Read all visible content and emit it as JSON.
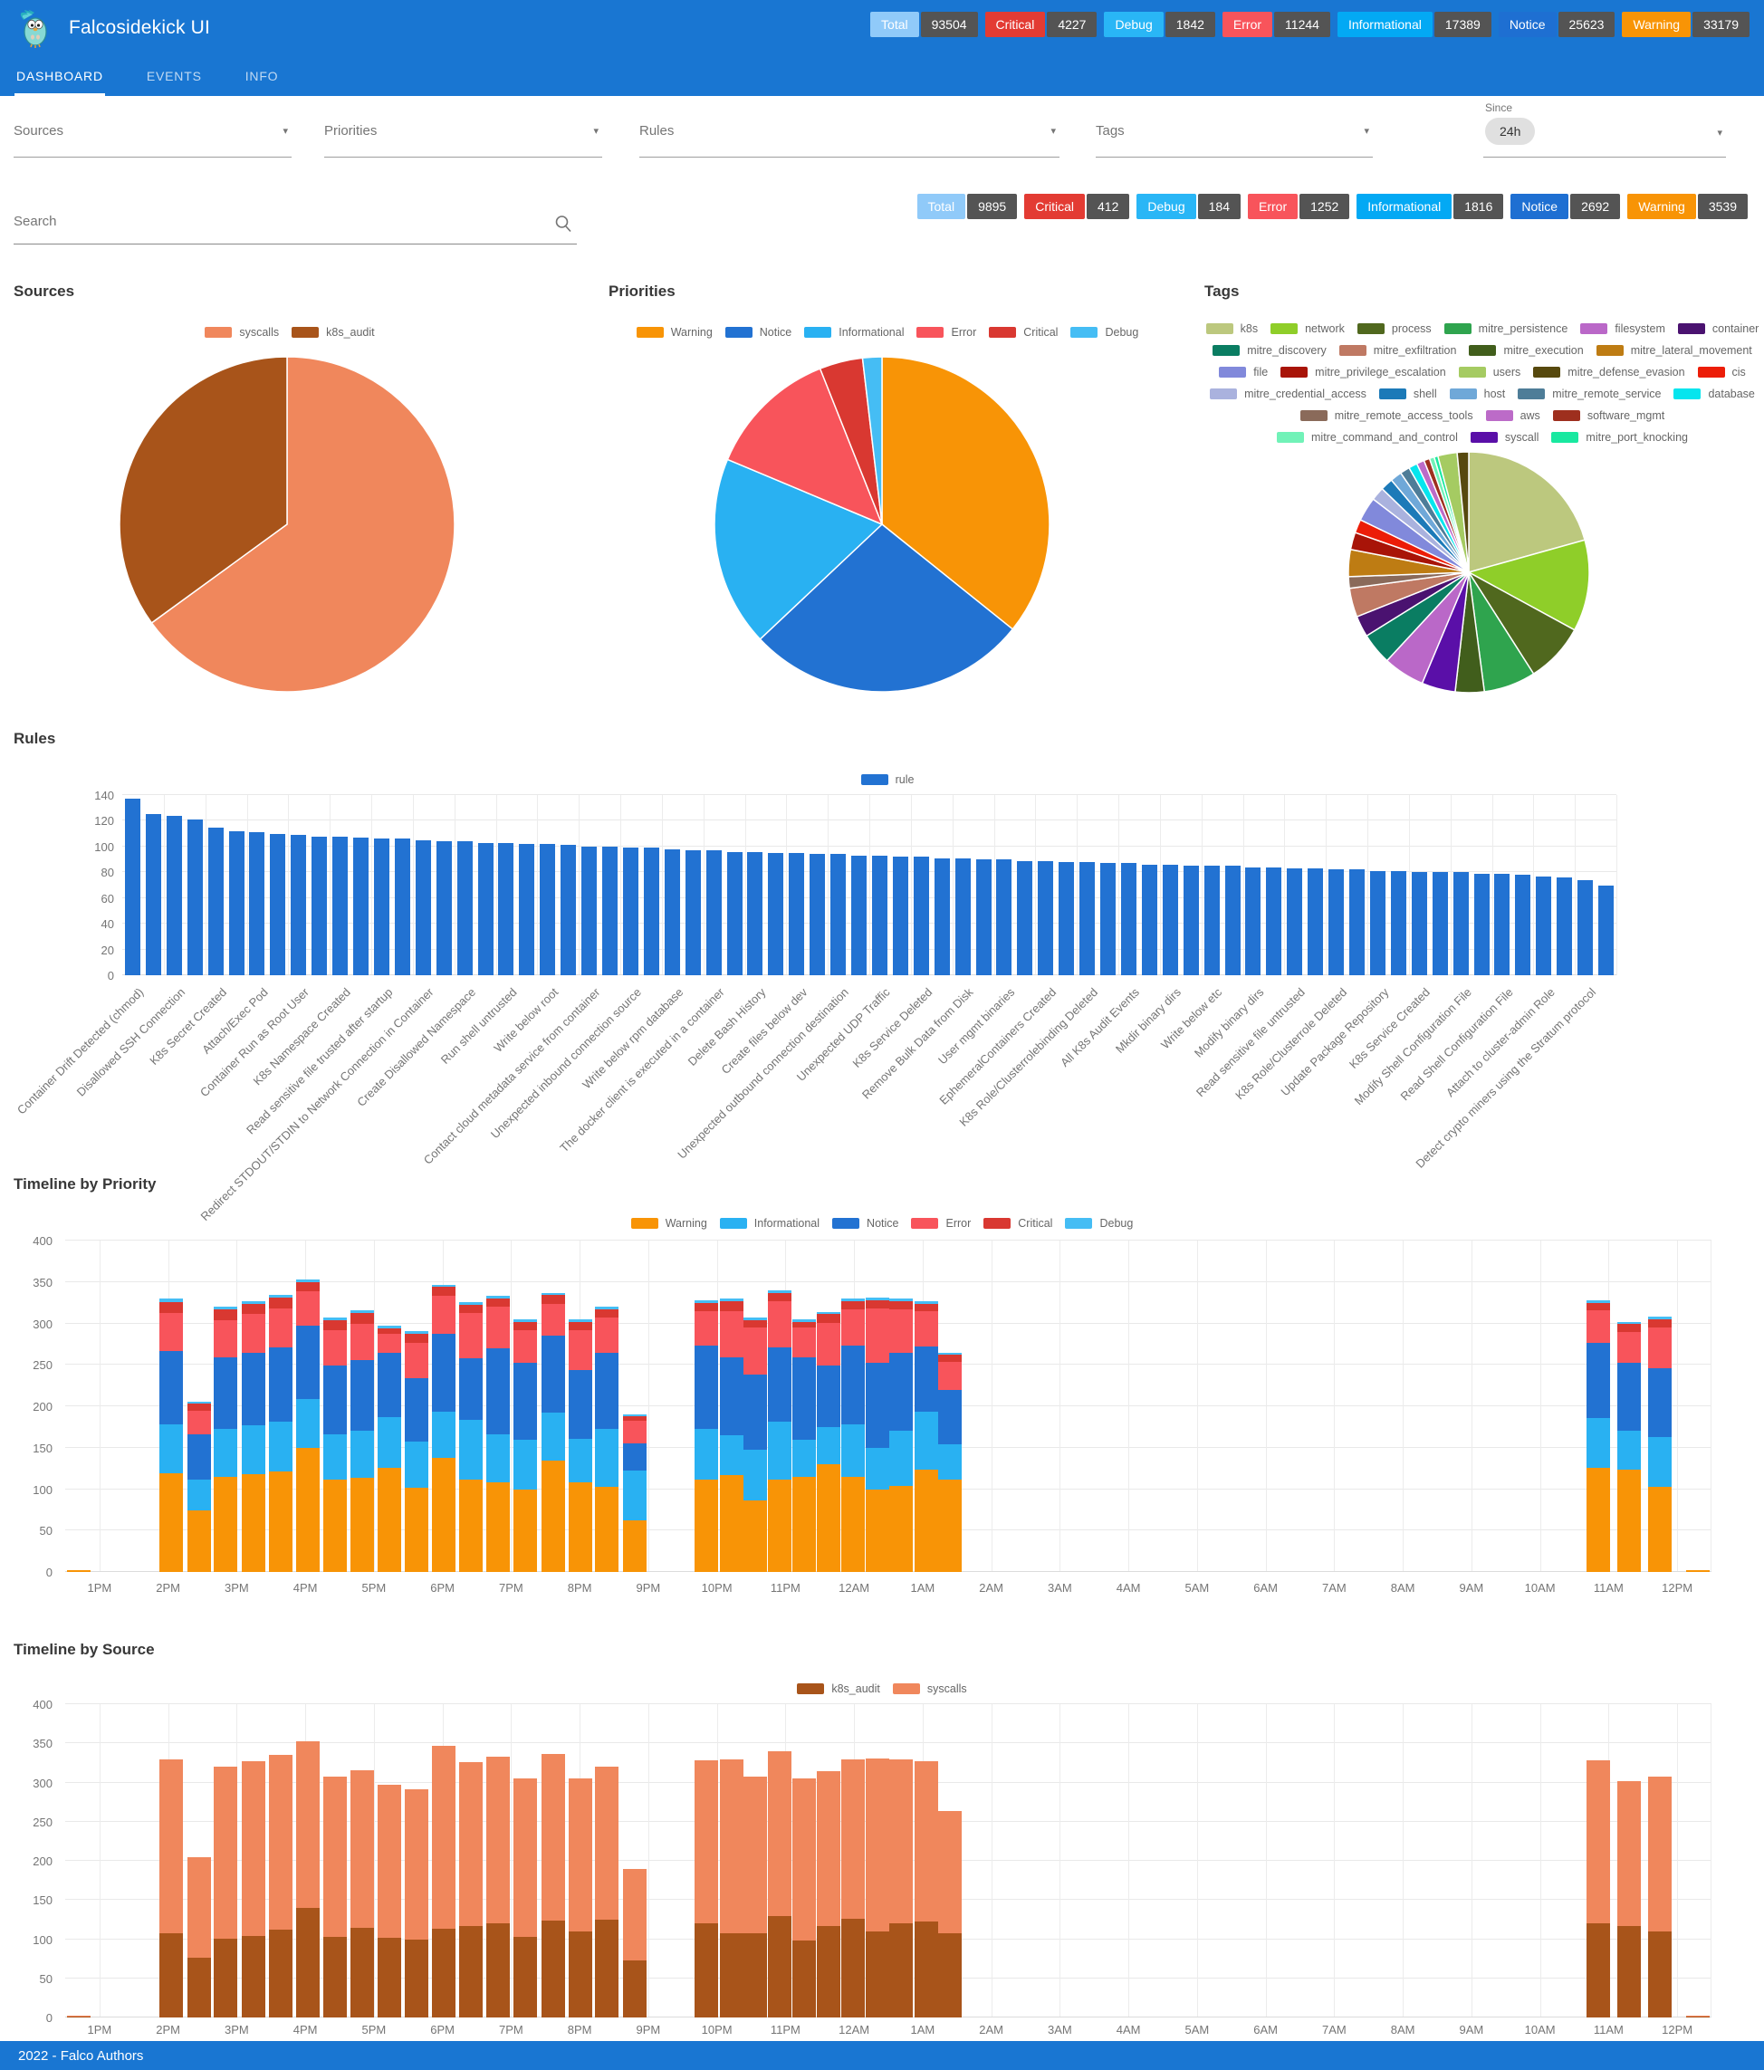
{
  "header": {
    "title": "Falcosidekick UI",
    "tabs": [
      {
        "label": "DASHBOARD",
        "active": true
      },
      {
        "label": "EVENTS",
        "active": false
      },
      {
        "label": "INFO",
        "active": false
      }
    ],
    "badges": [
      {
        "label": "Total",
        "count": "93504",
        "color": "#90CAF9"
      },
      {
        "label": "Critical",
        "count": "4227",
        "color": "#E33B33"
      },
      {
        "label": "Debug",
        "count": "1842",
        "color": "#29B6F6"
      },
      {
        "label": "Error",
        "count": "11244",
        "color": "#F8545B"
      },
      {
        "label": "Informational",
        "count": "17389",
        "color": "#03A9F4"
      },
      {
        "label": "Notice",
        "count": "25623",
        "color": "#1E6FD2"
      },
      {
        "label": "Warning",
        "count": "33179",
        "color": "#F89406"
      }
    ]
  },
  "filters": {
    "selects": [
      {
        "label": "Sources"
      },
      {
        "label": "Priorities"
      },
      {
        "label": "Rules"
      },
      {
        "label": "Tags"
      }
    ],
    "since": {
      "label": "Since",
      "value": "24h"
    },
    "search": {
      "placeholder": "Search"
    },
    "badges": [
      {
        "label": "Total",
        "count": "9895",
        "color": "#90CAF9"
      },
      {
        "label": "Critical",
        "count": "412",
        "color": "#E33B33"
      },
      {
        "label": "Debug",
        "count": "184",
        "color": "#29B6F6"
      },
      {
        "label": "Error",
        "count": "1252",
        "color": "#F8545B"
      },
      {
        "label": "Informational",
        "count": "1816",
        "color": "#03A9F4"
      },
      {
        "label": "Notice",
        "count": "2692",
        "color": "#1E6FD2"
      },
      {
        "label": "Warning",
        "count": "3539",
        "color": "#F89406"
      }
    ]
  },
  "sources_chart": {
    "title": "Sources",
    "type": "pie",
    "slices": [
      {
        "label": "syscalls",
        "value": 6430,
        "color": "#F0875C"
      },
      {
        "label": "k8s_audit",
        "value": 3465,
        "color": "#A8541A"
      }
    ]
  },
  "priorities_chart": {
    "title": "Priorities",
    "type": "pie",
    "slices": [
      {
        "label": "Warning",
        "value": 3539,
        "color": "#F89406"
      },
      {
        "label": "Notice",
        "value": 2692,
        "color": "#2272D2"
      },
      {
        "label": "Informational",
        "value": 1816,
        "color": "#29B1F2"
      },
      {
        "label": "Error",
        "value": 1252,
        "color": "#F8545B"
      },
      {
        "label": "Critical",
        "value": 412,
        "color": "#D93831"
      },
      {
        "label": "Debug",
        "value": 184,
        "color": "#45BDF4"
      }
    ]
  },
  "tags_chart": {
    "title": "Tags",
    "type": "pie",
    "slices": [
      {
        "label": "k8s",
        "value": 1600,
        "color": "#BCC87E"
      },
      {
        "label": "network",
        "value": 950,
        "color": "#8FCE29"
      },
      {
        "label": "process",
        "value": 620,
        "color": "#50681E"
      },
      {
        "label": "mitre_persistence",
        "value": 540,
        "color": "#2FA44E"
      },
      {
        "label": "mitre_execution",
        "value": 300,
        "color": "#415E1C"
      },
      {
        "label": "syscall",
        "value": 350,
        "color": "#5A0FA8"
      },
      {
        "label": "filesystem",
        "value": 430,
        "color": "#BA68C8"
      },
      {
        "label": "mitre_discovery",
        "value": 330,
        "color": "#0A7D62"
      },
      {
        "label": "container",
        "value": 220,
        "color": "#4A1270"
      },
      {
        "label": "mitre_exfiltration",
        "value": 300,
        "color": "#BF7963"
      },
      {
        "label": "mitre_remote_access_tools",
        "value": 120,
        "color": "#8A6A5A"
      },
      {
        "label": "mitre_lateral_movement",
        "value": 280,
        "color": "#BE7C13"
      },
      {
        "label": "mitre_privilege_escalation",
        "value": 180,
        "color": "#A81408"
      },
      {
        "label": "cis",
        "value": 140,
        "color": "#EC1D08"
      },
      {
        "label": "file",
        "value": 250,
        "color": "#8189DB"
      },
      {
        "label": "mitre_credential_access",
        "value": 140,
        "color": "#AAB2DE"
      },
      {
        "label": "shell",
        "value": 130,
        "color": "#1C7AB8"
      },
      {
        "label": "host",
        "value": 120,
        "color": "#6FA8D8"
      },
      {
        "label": "mitre_remote_service",
        "value": 100,
        "color": "#4E7D98"
      },
      {
        "label": "database",
        "value": 90,
        "color": "#06E5EE"
      },
      {
        "label": "aws",
        "value": 80,
        "color": "#BC6BC8"
      },
      {
        "label": "software_mgmt",
        "value": 60,
        "color": "#9E2F1E"
      },
      {
        "label": "mitre_command_and_control",
        "value": 50,
        "color": "#71F2B8"
      },
      {
        "label": "mitre_port_knocking",
        "value": 40,
        "color": "#19E8A0"
      },
      {
        "label": "users",
        "value": 200,
        "color": "#A5CB62"
      },
      {
        "label": "mitre_defense_evasion",
        "value": 120,
        "color": "#57490E"
      }
    ],
    "legend_order": [
      "k8s",
      "network",
      "process",
      "mitre_persistence",
      "filesystem",
      "container",
      "mitre_discovery",
      "mitre_exfiltration",
      "mitre_execution",
      "mitre_lateral_movement",
      "file",
      "mitre_privilege_escalation",
      "users",
      "mitre_defense_evasion",
      "cis",
      "mitre_credential_access",
      "shell",
      "host",
      "mitre_remote_service",
      "database",
      "mitre_remote_access_tools",
      "aws",
      "software_mgmt",
      "mitre_command_and_control",
      "syscall",
      "mitre_port_knocking"
    ]
  },
  "rules_chart": {
    "title": "Rules",
    "type": "bar",
    "legend": "rule",
    "color": "#2272D2",
    "ymax": 140,
    "yticks": [
      0,
      20,
      40,
      60,
      80,
      100,
      120,
      140
    ],
    "values": [
      137,
      125,
      124,
      121,
      115,
      112,
      111,
      110,
      109,
      108,
      108,
      107,
      106,
      106,
      105,
      104,
      104,
      103,
      103,
      102,
      102,
      101,
      100,
      100,
      99,
      99,
      98,
      97,
      97,
      96,
      96,
      95,
      95,
      94,
      94,
      93,
      93,
      92,
      92,
      91,
      91,
      90,
      90,
      89,
      89,
      88,
      88,
      87,
      87,
      86,
      86,
      85,
      85,
      85,
      84,
      84,
      83,
      83,
      82,
      82,
      81,
      81,
      80,
      80,
      80,
      79,
      79,
      78,
      77,
      76,
      74,
      70
    ],
    "labels": [
      "Container Drift Detected (chmod)",
      "Disallowed SSH Connection",
      "K8s Secret Created",
      "Attach/Exec Pod",
      "Container Run as Root User",
      "K8s Namespace Created",
      "Read sensitive file trusted after startup",
      "Redirect STDOUT/STDIN to Network Connection in Container",
      "Create Disallowed Namespace",
      "Run shell untrusted",
      "Write below root",
      "Contact cloud metadata service from container",
      "Unexpected inbound connection source",
      "Write below rpm database",
      "The docker client is executed in a container",
      "Delete Bash History",
      "Create files below dev",
      "Unexpected outbound connection destination",
      "Unexpected UDP Traffic",
      "K8s Service Deleted",
      "Remove Bulk Data from Disk",
      "User mgmt binaries",
      "EphemeralContainers Created",
      "K8s Role/Clusterrolebinding Deleted",
      "All K8s Audit Events",
      "Mkdir binary dirs",
      "Write below etc",
      "Modify binary dirs",
      "Read sensitive file untrusted",
      "K8s Role/Clusterrole Deleted",
      "Update Package Repository",
      "K8s Service Created",
      "Modify Shell Configuration File",
      "Read Shell Configuration File",
      "Attach to cluster-admin Role",
      "Detect crypto miners using the Stratum protocol"
    ]
  },
  "timeline_priority": {
    "title": "Timeline by Priority",
    "type": "stacked-bar",
    "ymax": 400,
    "yticks": [
      0,
      50,
      100,
      150,
      200,
      250,
      300,
      350,
      400
    ],
    "hours": [
      "1PM",
      "2PM",
      "3PM",
      "4PM",
      "5PM",
      "6PM",
      "7PM",
      "8PM",
      "9PM",
      "10PM",
      "11PM",
      "12AM",
      "1AM",
      "2AM",
      "3AM",
      "4AM",
      "5AM",
      "6AM",
      "7AM",
      "8AM",
      "9AM",
      "10AM",
      "11AM",
      "12PM"
    ],
    "series": [
      {
        "name": "Warning",
        "color": "#F89406"
      },
      {
        "name": "Informational",
        "color": "#29B1F2"
      },
      {
        "name": "Notice",
        "color": "#2272D2"
      },
      {
        "name": "Error",
        "color": "#F8545B"
      },
      {
        "name": "Critical",
        "color": "#D93831"
      },
      {
        "name": "Debug",
        "color": "#45BDF4"
      }
    ],
    "bars": [
      {
        "t": 0.2,
        "v": [
          2,
          0,
          0,
          0,
          0,
          0
        ]
      },
      {
        "t": 1.55,
        "v": [
          119,
          59,
          89,
          46,
          13,
          4
        ]
      },
      {
        "t": 1.95,
        "v": [
          74,
          37,
          55,
          29,
          8,
          2
        ]
      },
      {
        "t": 2.34,
        "v": [
          115,
          58,
          86,
          45,
          13,
          3
        ]
      },
      {
        "t": 2.74,
        "v": [
          118,
          59,
          88,
          46,
          13,
          3
        ]
      },
      {
        "t": 3.14,
        "v": [
          121,
          60,
          90,
          47,
          13,
          4
        ]
      },
      {
        "t": 3.54,
        "v": [
          150,
          59,
          88,
          42,
          11,
          3
        ]
      },
      {
        "t": 3.93,
        "v": [
          111,
          55,
          83,
          43,
          12,
          3
        ]
      },
      {
        "t": 4.33,
        "v": [
          114,
          57,
          85,
          44,
          13,
          3
        ]
      },
      {
        "t": 4.73,
        "v": [
          126,
          61,
          77,
          24,
          6,
          3
        ]
      },
      {
        "t": 5.12,
        "v": [
          102,
          55,
          77,
          42,
          12,
          3
        ]
      },
      {
        "t": 5.52,
        "v": [
          138,
          55,
          95,
          45,
          11,
          3
        ]
      },
      {
        "t": 5.92,
        "v": [
          112,
          72,
          74,
          55,
          10,
          3
        ]
      },
      {
        "t": 6.31,
        "v": [
          108,
          58,
          104,
          50,
          10,
          3
        ]
      },
      {
        "t": 6.71,
        "v": [
          99,
          61,
          93,
          39,
          10,
          3
        ]
      },
      {
        "t": 7.11,
        "v": [
          134,
          58,
          93,
          38,
          11,
          3
        ]
      },
      {
        "t": 7.51,
        "v": [
          108,
          53,
          83,
          48,
          10,
          3
        ]
      },
      {
        "t": 7.9,
        "v": [
          103,
          70,
          92,
          42,
          10,
          3
        ]
      },
      {
        "t": 8.3,
        "v": [
          62,
          60,
          33,
          28,
          5,
          2
        ]
      },
      {
        "t": 9.35,
        "v": [
          112,
          61,
          100,
          42,
          10,
          3
        ]
      },
      {
        "t": 9.71,
        "v": [
          117,
          48,
          94,
          56,
          12,
          3
        ]
      },
      {
        "t": 10.06,
        "v": [
          86,
          62,
          90,
          57,
          9,
          3
        ]
      },
      {
        "t": 10.42,
        "v": [
          112,
          69,
          90,
          56,
          10,
          3
        ]
      },
      {
        "t": 10.77,
        "v": [
          115,
          45,
          99,
          36,
          7,
          3
        ]
      },
      {
        "t": 11.13,
        "v": [
          130,
          45,
          74,
          52,
          10,
          3
        ]
      },
      {
        "t": 11.48,
        "v": [
          115,
          63,
          95,
          44,
          10,
          3
        ]
      },
      {
        "t": 11.84,
        "v": [
          99,
          51,
          103,
          65,
          10,
          3
        ]
      },
      {
        "t": 12.19,
        "v": [
          104,
          66,
          95,
          52,
          10,
          3
        ]
      },
      {
        "t": 12.55,
        "v": [
          123,
          71,
          78,
          43,
          9,
          3
        ]
      },
      {
        "t": 12.9,
        "v": [
          111,
          43,
          66,
          34,
          8,
          2
        ]
      },
      {
        "t": 22.35,
        "v": [
          126,
          60,
          90,
          40,
          9,
          3
        ]
      },
      {
        "t": 22.8,
        "v": [
          123,
          47,
          82,
          38,
          9,
          3
        ]
      },
      {
        "t": 23.25,
        "v": [
          103,
          60,
          83,
          49,
          10,
          3
        ]
      },
      {
        "t": 23.8,
        "v": [
          2,
          0,
          0,
          0,
          0,
          0
        ]
      }
    ]
  },
  "timeline_source": {
    "title": "Timeline by Source",
    "type": "stacked-bar",
    "ymax": 400,
    "yticks": [
      0,
      50,
      100,
      150,
      200,
      250,
      300,
      350,
      400
    ],
    "series": [
      {
        "name": "k8s_audit",
        "color": "#A8541A"
      },
      {
        "name": "syscalls",
        "color": "#F0875C"
      }
    ],
    "bars": [
      {
        "t": 0.2,
        "v": [
          1,
          1
        ]
      },
      {
        "t": 1.55,
        "v": [
          107,
          223
        ]
      },
      {
        "t": 1.95,
        "v": [
          76,
          129
        ]
      },
      {
        "t": 2.34,
        "v": [
          101,
          219
        ]
      },
      {
        "t": 2.74,
        "v": [
          104,
          223
        ]
      },
      {
        "t": 3.14,
        "v": [
          112,
          223
        ]
      },
      {
        "t": 3.54,
        "v": [
          140,
          213
        ]
      },
      {
        "t": 3.93,
        "v": [
          103,
          204
        ]
      },
      {
        "t": 4.33,
        "v": [
          114,
          202
        ]
      },
      {
        "t": 4.73,
        "v": [
          102,
          195
        ]
      },
      {
        "t": 5.12,
        "v": [
          100,
          191
        ]
      },
      {
        "t": 5.52,
        "v": [
          113,
          234
        ]
      },
      {
        "t": 5.92,
        "v": [
          117,
          209
        ]
      },
      {
        "t": 6.31,
        "v": [
          120,
          213
        ]
      },
      {
        "t": 6.71,
        "v": [
          103,
          202
        ]
      },
      {
        "t": 7.11,
        "v": [
          124,
          213
        ]
      },
      {
        "t": 7.51,
        "v": [
          110,
          195
        ]
      },
      {
        "t": 7.9,
        "v": [
          125,
          195
        ]
      },
      {
        "t": 8.3,
        "v": [
          73,
          117
        ]
      },
      {
        "t": 9.35,
        "v": [
          120,
          208
        ]
      },
      {
        "t": 9.71,
        "v": [
          108,
          222
        ]
      },
      {
        "t": 10.06,
        "v": [
          107,
          200
        ]
      },
      {
        "t": 10.42,
        "v": [
          129,
          211
        ]
      },
      {
        "t": 10.77,
        "v": [
          98,
          207
        ]
      },
      {
        "t": 11.13,
        "v": [
          117,
          197
        ]
      },
      {
        "t": 11.48,
        "v": [
          126,
          204
        ]
      },
      {
        "t": 11.84,
        "v": [
          110,
          221
        ]
      },
      {
        "t": 12.19,
        "v": [
          120,
          210
        ]
      },
      {
        "t": 12.55,
        "v": [
          122,
          205
        ]
      },
      {
        "t": 12.9,
        "v": [
          108,
          156
        ]
      },
      {
        "t": 22.35,
        "v": [
          120,
          208
        ]
      },
      {
        "t": 22.8,
        "v": [
          117,
          185
        ]
      },
      {
        "t": 23.25,
        "v": [
          110,
          198
        ]
      },
      {
        "t": 23.8,
        "v": [
          1,
          1
        ]
      }
    ]
  },
  "footer": {
    "text": "2022 - Falco Authors"
  }
}
